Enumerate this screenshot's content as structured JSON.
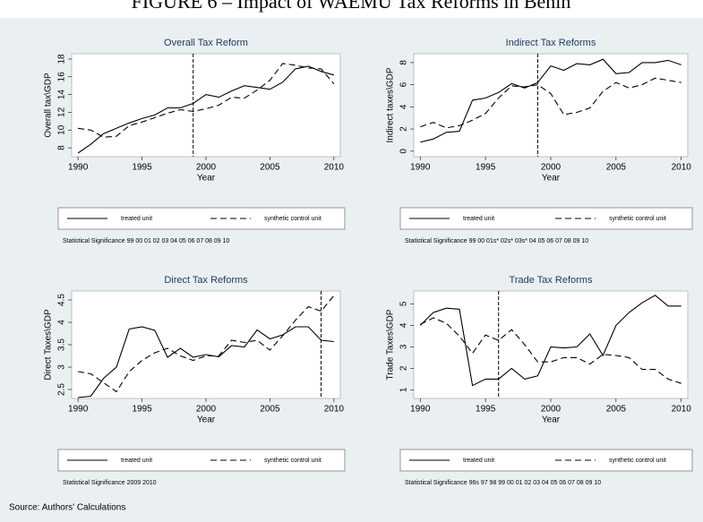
{
  "page_title": "FIGURE 6 – Impact of WAEMU Tax Reforms in Benin",
  "source": "Source: Authors' Calculations",
  "chart_data": [
    {
      "type": "line",
      "title": "Overall Tax Reform",
      "xlabel": "Year",
      "ylabel": "Overall tax\\GDP",
      "x": [
        1990,
        1991,
        1992,
        1993,
        1994,
        1995,
        1996,
        1997,
        1998,
        1999,
        2000,
        2001,
        2002,
        2003,
        2004,
        2005,
        2006,
        2007,
        2008,
        2009,
        2010
      ],
      "xlim": [
        1989.5,
        2010.5
      ],
      "xticks": [
        1990,
        1995,
        2000,
        2005,
        2010
      ],
      "ylim": [
        7,
        18.6
      ],
      "yticks": [
        8,
        10,
        12,
        14,
        16,
        18
      ],
      "reference_line": 1999,
      "series": [
        {
          "name": "treated unit",
          "color": "#000000",
          "dash": "solid",
          "values": [
            7.4,
            8.4,
            9.6,
            10.2,
            10.8,
            11.3,
            11.7,
            12.5,
            12.5,
            13.0,
            14.0,
            13.7,
            14.4,
            15.0,
            14.8,
            14.6,
            15.4,
            16.9,
            17.2,
            16.6,
            16.2
          ]
        },
        {
          "name": "synthetic control unit",
          "color": "#000000",
          "dash": "dashed",
          "values": [
            10.2,
            10.0,
            9.2,
            9.3,
            10.5,
            10.9,
            11.4,
            11.9,
            12.3,
            12.1,
            12.4,
            12.8,
            13.7,
            13.6,
            14.5,
            15.6,
            17.5,
            17.3,
            17.0,
            16.9,
            15.2
          ]
        }
      ],
      "note": "Statistical Significance 99 00 01 02 03 04 05 06 07 08 09 10"
    },
    {
      "type": "line",
      "title": "Indirect Tax Reforms",
      "xlabel": "Year",
      "ylabel": "Indirect taxes\\GDP",
      "x": [
        1990,
        1991,
        1992,
        1993,
        1994,
        1995,
        1996,
        1997,
        1998,
        1999,
        2000,
        2001,
        2002,
        2003,
        2004,
        2005,
        2006,
        2007,
        2008,
        2009,
        2010
      ],
      "xlim": [
        1989.5,
        2010.5
      ],
      "xticks": [
        1990,
        1995,
        2000,
        2005,
        2010
      ],
      "ylim": [
        -0.5,
        8.8
      ],
      "yticks": [
        0,
        2,
        4,
        6,
        8
      ],
      "reference_line": 1999,
      "series": [
        {
          "name": "treated unit",
          "color": "#000000",
          "dash": "solid",
          "values": [
            0.8,
            1.1,
            1.7,
            1.8,
            4.6,
            4.8,
            5.3,
            6.1,
            5.7,
            6.2,
            7.7,
            7.3,
            7.9,
            7.8,
            8.3,
            7.0,
            7.1,
            8.0,
            8.0,
            8.2,
            7.8
          ]
        },
        {
          "name": "synthetic control unit",
          "color": "#000000",
          "dash": "dashed",
          "values": [
            2.2,
            2.6,
            2.1,
            2.3,
            2.8,
            3.4,
            4.8,
            5.9,
            5.8,
            6.0,
            5.2,
            3.3,
            3.5,
            3.9,
            5.4,
            6.2,
            5.7,
            6.0,
            6.6,
            6.4,
            6.2
          ]
        }
      ],
      "note": "Statistical Significance 99 00 01s* 02s* 03s* 04 05 06 07 08 09 10"
    },
    {
      "type": "line",
      "title": "Direct Tax Reforms",
      "xlabel": "Year",
      "ylabel": "Direct Taxes\\GDP",
      "x": [
        1990,
        1991,
        1992,
        1993,
        1994,
        1995,
        1996,
        1997,
        1998,
        1999,
        2000,
        2001,
        2002,
        2003,
        2004,
        2005,
        2006,
        2007,
        2008,
        2009,
        2010
      ],
      "xlim": [
        1989.5,
        2010.5
      ],
      "xticks": [
        1990,
        1995,
        2000,
        2005,
        2010
      ],
      "ylim": [
        2.3,
        4.7
      ],
      "yticks": [
        2.5,
        3,
        3.5,
        4,
        4.5
      ],
      "reference_line": 2009,
      "series": [
        {
          "name": "treated unit",
          "color": "#000000",
          "dash": "solid",
          "values": [
            2.32,
            2.35,
            2.75,
            3.0,
            3.85,
            3.9,
            3.82,
            3.22,
            3.42,
            3.22,
            3.28,
            3.23,
            3.48,
            3.45,
            3.83,
            3.63,
            3.72,
            3.9,
            3.9,
            3.6,
            3.57
          ]
        },
        {
          "name": "synthetic control unit",
          "color": "#000000",
          "dash": "dashed",
          "values": [
            2.9,
            2.85,
            2.65,
            2.45,
            2.9,
            3.15,
            3.32,
            3.42,
            3.25,
            3.15,
            3.25,
            3.25,
            3.6,
            3.55,
            3.6,
            3.38,
            3.7,
            4.05,
            4.35,
            4.25,
            4.6
          ]
        }
      ],
      "note": "Statistical Significance 2009 2010"
    },
    {
      "type": "line",
      "title": "Trade Tax Reforms",
      "xlabel": "Year",
      "ylabel": "Trade Taxes\\GDP",
      "x": [
        1990,
        1991,
        1992,
        1993,
        1994,
        1995,
        1996,
        1997,
        1998,
        1999,
        2000,
        2001,
        2002,
        2003,
        2004,
        2005,
        2006,
        2007,
        2008,
        2009,
        2010
      ],
      "xlim": [
        1989.5,
        2010.5
      ],
      "xticks": [
        1990,
        1995,
        2000,
        2005,
        2010
      ],
      "ylim": [
        0.6,
        5.6
      ],
      "yticks": [
        1,
        2,
        3,
        4,
        5
      ],
      "reference_line": 1996,
      "series": [
        {
          "name": "treated unit",
          "color": "#000000",
          "dash": "solid",
          "values": [
            4.0,
            4.6,
            4.8,
            4.75,
            1.2,
            1.5,
            1.5,
            2.0,
            1.5,
            1.65,
            3.0,
            2.95,
            3.0,
            3.6,
            2.6,
            4.0,
            4.6,
            5.05,
            5.4,
            4.9,
            4.9
          ]
        },
        {
          "name": "synthetic control unit",
          "color": "#000000",
          "dash": "dashed",
          "values": [
            4.05,
            4.35,
            4.1,
            3.5,
            2.7,
            3.55,
            3.3,
            3.8,
            3.1,
            2.3,
            2.3,
            2.5,
            2.5,
            2.2,
            2.65,
            2.6,
            2.5,
            1.95,
            1.95,
            1.5,
            1.3
          ]
        }
      ],
      "note": "Statistical Significance 96s 97 98 99 00 01 02 03 04 05 06 07 08 09 10"
    }
  ]
}
